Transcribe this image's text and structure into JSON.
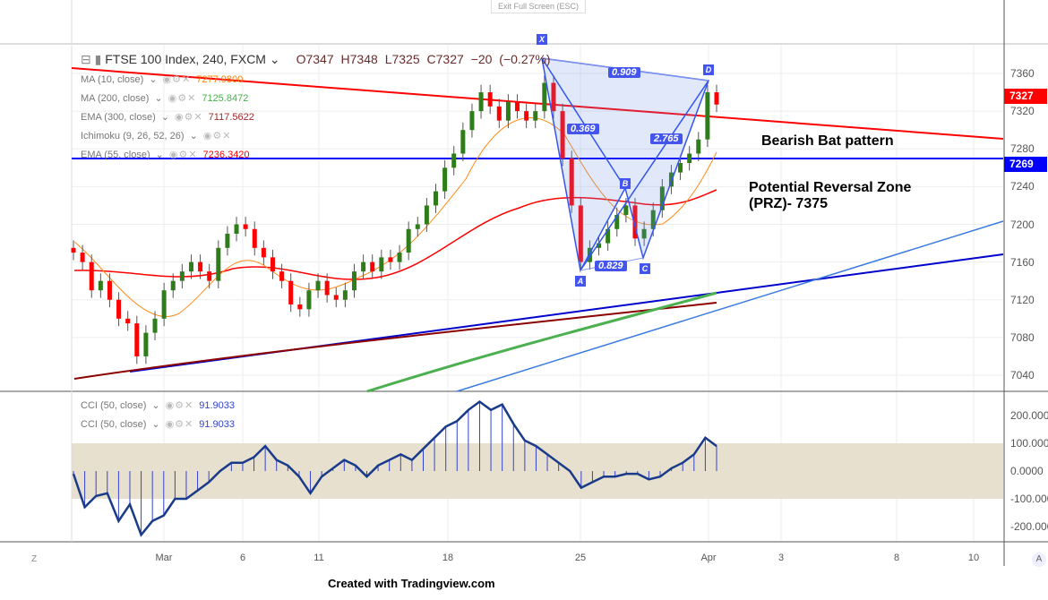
{
  "toolbar": {
    "exit_fullscreen": "Exit Full Screen (ESC)"
  },
  "header": {
    "symbol": "FTSE 100 Index, 240, FXCM",
    "open": "O7347",
    "high": "H7348",
    "low": "L7325",
    "close": "C7327",
    "change": "−20 (−0.27%)"
  },
  "indicators": [
    {
      "label": "MA (10, close)",
      "value": "7277.9800",
      "color": "#ff7f00"
    },
    {
      "label": "MA (200, close)",
      "value": "7125.8472",
      "color": "#4caf50"
    },
    {
      "label": "EMA (300, close)",
      "value": "7117.5622",
      "color": "#a52a2a"
    },
    {
      "label": "Ichimoku (9, 26, 52, 26)",
      "value": "",
      "color": "#aaaaaa"
    },
    {
      "label": "EMA (55, close)",
      "value": "7236.3420",
      "color": "#ff0000"
    }
  ],
  "cci": [
    {
      "label": "CCI (50, close)",
      "value": "91.9033"
    },
    {
      "label": "CCI (50, close)",
      "value": "91.9033"
    }
  ],
  "price_axis": [
    "7360",
    "7320",
    "7280",
    "7240",
    "7200",
    "7160",
    "7120",
    "7080",
    "7040"
  ],
  "cci_axis": [
    "200.0000",
    "100.0000",
    "0.0000",
    "-100.0000",
    "-200.0000"
  ],
  "time_axis": [
    "Mar",
    "6",
    "11",
    "18",
    "25",
    "Apr",
    "3",
    "8",
    "10"
  ],
  "price_labels": {
    "last": "7327",
    "level": "7269",
    "last_color": "#ff0000",
    "level_color": "#0000ff"
  },
  "pattern": {
    "points": [
      "X",
      "A",
      "B",
      "C",
      "D"
    ],
    "ratios": [
      "0.909",
      "0.369",
      "2.765",
      "0.829"
    ]
  },
  "annotations": {
    "pattern_name": "Bearish Bat pattern",
    "prz_line1": "Potential Reversal Zone",
    "prz_line2": "(PRZ)- 7375"
  },
  "closes": [
    7170,
    7160,
    7130,
    7140,
    7120,
    7100,
    7095,
    7060,
    7085,
    7100,
    7130,
    7140,
    7150,
    7160,
    7150,
    7140,
    7175,
    7190,
    7200,
    7195,
    7175,
    7165,
    7150,
    7140,
    7115,
    7110,
    7130,
    7140,
    7125,
    7120,
    7130,
    7150,
    7160,
    7150,
    7165,
    7160,
    7170,
    7195,
    7200,
    7220,
    7235,
    7260,
    7275,
    7300,
    7320,
    7340,
    7325,
    7310,
    7330,
    7320,
    7310,
    7320,
    7350,
    7320,
    7270,
    7220,
    7160,
    7175,
    7180,
    7195,
    7210,
    7220,
    7185,
    7195,
    7215,
    7240,
    7255,
    7265,
    7275,
    7290,
    7340,
    7327
  ],
  "cci_values": [
    -10,
    -130,
    -90,
    -80,
    -180,
    -120,
    -230,
    -180,
    -160,
    -100,
    -100,
    -70,
    -40,
    0,
    30,
    30,
    50,
    90,
    40,
    20,
    -20,
    -80,
    -20,
    10,
    40,
    20,
    -20,
    20,
    40,
    60,
    40,
    80,
    120,
    160,
    180,
    220,
    250,
    220,
    240,
    170,
    110,
    90,
    60,
    30,
    0,
    -60,
    -40,
    -20,
    -20,
    -10,
    -10,
    -30,
    -20,
    10,
    30,
    60,
    120,
    90
  ],
  "footer": "Created with Tradingview.com"
}
